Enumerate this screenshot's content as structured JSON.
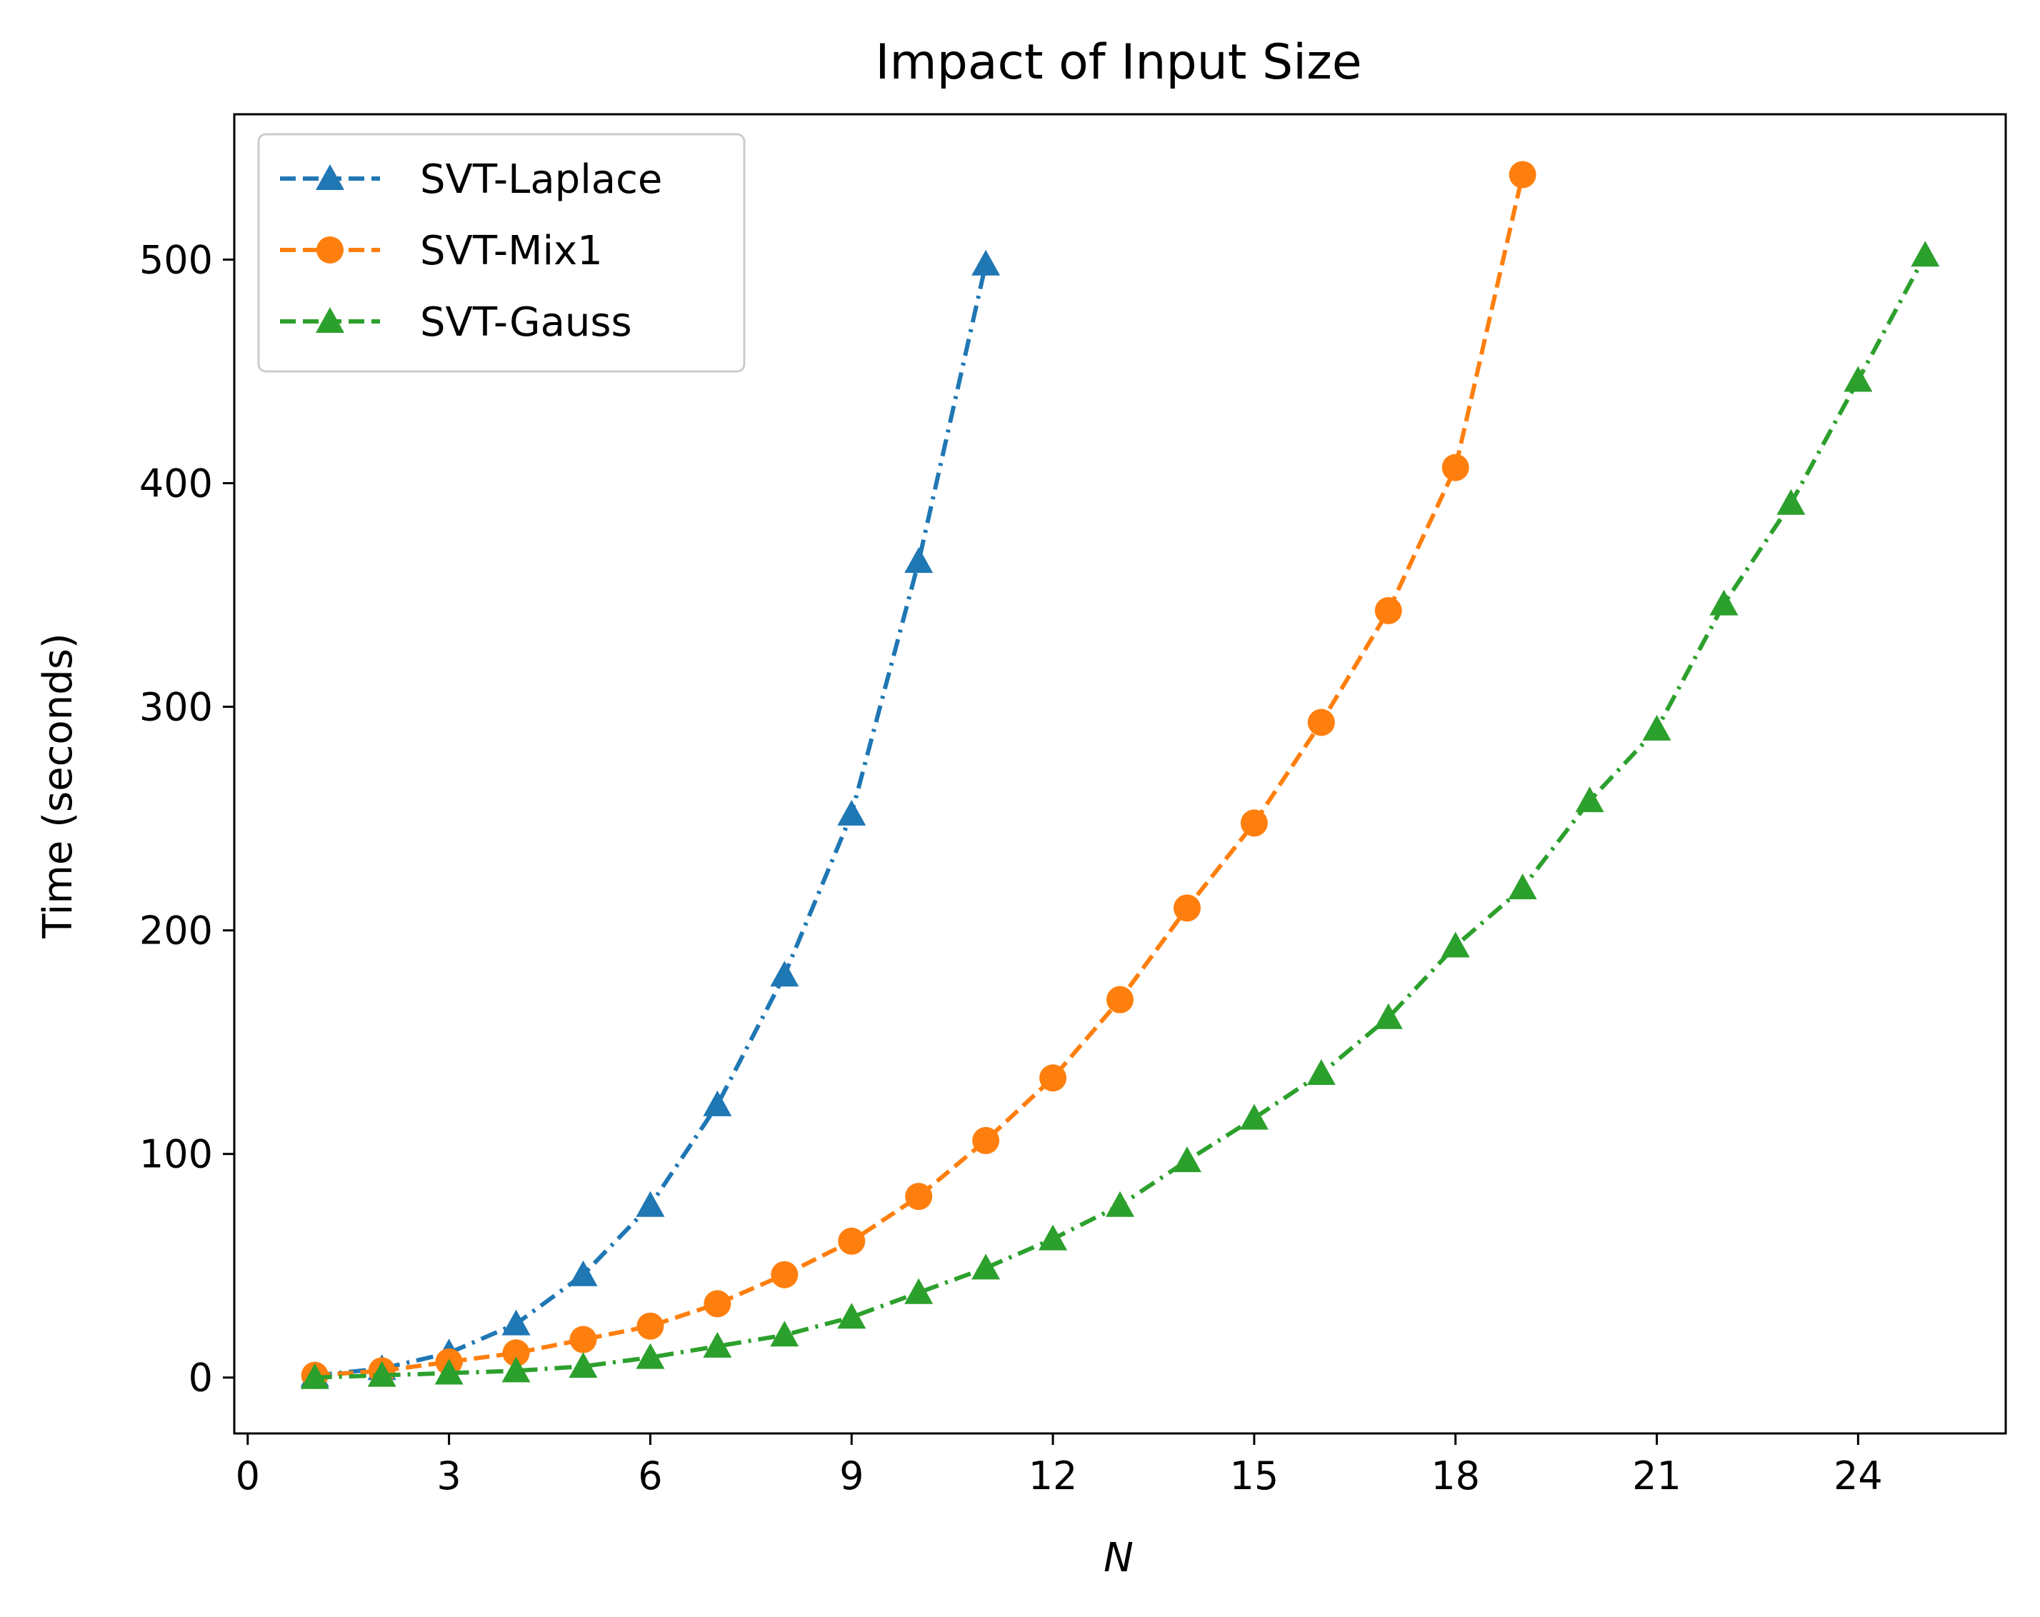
{
  "chart_data": {
    "type": "line",
    "title": "Impact of Input Size",
    "xlabel": "N",
    "ylabel": "Time (seconds)",
    "xlim": [
      -0.2,
      26.2
    ],
    "ylim": [
      -25,
      565
    ],
    "xticks": [
      0,
      3,
      6,
      9,
      12,
      15,
      18,
      21,
      24
    ],
    "yticks": [
      0,
      100,
      200,
      300,
      400,
      500
    ],
    "grid": false,
    "legend_position": "upper-left",
    "series": [
      {
        "name": "SVT-Laplace",
        "color": "#1f77b4",
        "marker": "triangle",
        "linestyle": "dashdot",
        "x": [
          1,
          2,
          3,
          4,
          5,
          6,
          7,
          8,
          9,
          10,
          11
        ],
        "y": [
          1,
          4,
          11,
          24,
          46,
          77,
          122,
          180,
          252,
          365,
          498
        ]
      },
      {
        "name": "SVT-Mix1",
        "color": "#ff7f0e",
        "marker": "circle",
        "linestyle": "dashed",
        "x": [
          1,
          2,
          3,
          4,
          5,
          6,
          7,
          8,
          9,
          10,
          11,
          12,
          13,
          14,
          15,
          16,
          17,
          18,
          19
        ],
        "y": [
          1,
          3,
          7,
          11,
          17,
          23,
          33,
          46,
          61,
          81,
          106,
          134,
          169,
          210,
          248,
          293,
          343,
          407,
          538
        ]
      },
      {
        "name": "SVT-Gauss",
        "color": "#2ca02c",
        "marker": "triangle",
        "linestyle": "dashdot",
        "x": [
          1,
          2,
          3,
          4,
          5,
          6,
          7,
          8,
          9,
          10,
          11,
          12,
          13,
          14,
          15,
          16,
          17,
          18,
          19,
          20,
          21,
          22,
          23,
          24,
          25
        ],
        "y": [
          0,
          1,
          2,
          3,
          5,
          9,
          14,
          19,
          27,
          38,
          49,
          62,
          77,
          97,
          116,
          136,
          161,
          193,
          219,
          258,
          290,
          346,
          391,
          446,
          502
        ]
      }
    ]
  }
}
